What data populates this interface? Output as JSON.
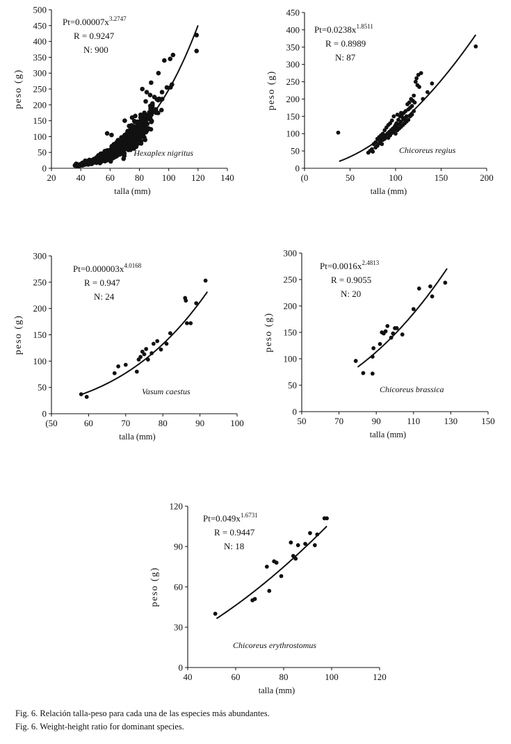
{
  "caption": {
    "line1": "Fig. 6. Relación talla-peso para cada una de las especies más abundantes.",
    "line2": "Fig. 6. Weight-height ratio for dominant species."
  },
  "chart_data": [
    {
      "type": "scatter",
      "species": "Hexaplex nigritus",
      "equation": {
        "prefix": "Pt=0.00007x",
        "exponent": "3.2747"
      },
      "r_label": "R = 0.9247",
      "n_label": "N: 900",
      "xlabel": "talla (mm)",
      "ylabel": "peso (g)",
      "xlim": [
        20,
        140
      ],
      "ylim": [
        0,
        500
      ],
      "xticks": [
        20,
        40,
        60,
        80,
        100,
        120,
        140
      ],
      "yticks": [
        0,
        50,
        100,
        150,
        200,
        250,
        300,
        350,
        400,
        450,
        500
      ],
      "fit": {
        "a": 7e-05,
        "b": 3.2747,
        "x_range": [
          36,
          120
        ]
      },
      "cloud": {
        "n": 900,
        "x_range": [
          36,
          120
        ],
        "spread": 0.32
      },
      "points": [
        [
          38,
          12
        ],
        [
          45,
          20
        ],
        [
          52,
          35
        ],
        [
          58,
          110
        ],
        [
          61,
          105
        ],
        [
          70,
          150
        ],
        [
          75,
          160
        ],
        [
          82,
          250
        ],
        [
          85,
          240
        ],
        [
          88,
          270
        ],
        [
          93,
          300
        ],
        [
          97,
          340
        ],
        [
          101,
          345
        ],
        [
          119,
          420
        ],
        [
          119,
          370
        ]
      ]
    },
    {
      "type": "scatter",
      "species": "Chicoreus regius",
      "equation": {
        "prefix": "Pt=0.0238x",
        "exponent": "1.8511"
      },
      "r_label": "R = 0.8989",
      "n_label": "N: 87",
      "xlabel": "talla (mm)",
      "ylabel": "peso (g)",
      "xlim": [
        0,
        200
      ],
      "ylim": [
        0,
        450
      ],
      "xticks": [
        0,
        50,
        100,
        150,
        200
      ],
      "xtick_labels": [
        "(0",
        "50",
        "100",
        "150",
        "200"
      ],
      "yticks": [
        0,
        50,
        100,
        150,
        200,
        250,
        300,
        350,
        400,
        450
      ],
      "fit": {
        "a": 0.0238,
        "b": 1.8511,
        "x_range": [
          38,
          188
        ]
      },
      "points": [
        [
          37,
          103
        ],
        [
          70,
          45
        ],
        [
          72,
          50
        ],
        [
          74,
          55
        ],
        [
          75,
          48
        ],
        [
          78,
          60
        ],
        [
          80,
          65
        ],
        [
          82,
          72
        ],
        [
          83,
          78
        ],
        [
          84,
          80
        ],
        [
          85,
          70
        ],
        [
          86,
          82
        ],
        [
          87,
          90
        ],
        [
          88,
          85
        ],
        [
          89,
          95
        ],
        [
          90,
          92
        ],
        [
          91,
          100
        ],
        [
          92,
          88
        ],
        [
          93,
          105
        ],
        [
          94,
          98
        ],
        [
          95,
          110
        ],
        [
          96,
          102
        ],
        [
          97,
          115
        ],
        [
          98,
          108
        ],
        [
          99,
          120
        ],
        [
          100,
          112
        ],
        [
          100,
          125
        ],
        [
          101,
          130
        ],
        [
          102,
          118
        ],
        [
          103,
          140
        ],
        [
          104,
          128
        ],
        [
          105,
          150
        ],
        [
          106,
          135
        ],
        [
          107,
          155
        ],
        [
          108,
          145
        ],
        [
          109,
          160
        ],
        [
          110,
          140
        ],
        [
          111,
          165
        ],
        [
          112,
          150
        ],
        [
          113,
          185
        ],
        [
          114,
          170
        ],
        [
          115,
          190
        ],
        [
          116,
          175
        ],
        [
          117,
          200
        ],
        [
          118,
          180
        ],
        [
          119,
          195
        ],
        [
          120,
          210
        ],
        [
          121,
          190
        ],
        [
          122,
          250
        ],
        [
          123,
          260
        ],
        [
          124,
          240
        ],
        [
          125,
          270
        ],
        [
          126,
          235
        ],
        [
          128,
          275
        ],
        [
          130,
          200
        ],
        [
          135,
          220
        ],
        [
          140,
          245
        ],
        [
          188,
          352
        ],
        [
          98,
          150
        ],
        [
          102,
          155
        ],
        [
          106,
          160
        ],
        [
          110,
          145
        ],
        [
          96,
          138
        ],
        [
          94,
          130
        ],
        [
          92,
          125
        ],
        [
          90,
          118
        ],
        [
          88,
          110
        ],
        [
          86,
          100
        ],
        [
          84,
          95
        ],
        [
          82,
          90
        ],
        [
          80,
          85
        ],
        [
          78,
          75
        ],
        [
          76,
          70
        ],
        [
          100,
          100
        ],
        [
          104,
          115
        ],
        [
          108,
          125
        ],
        [
          112,
          135
        ],
        [
          116,
          150
        ],
        [
          120,
          165
        ],
        [
          118,
          155
        ],
        [
          114,
          140
        ],
        [
          110,
          130
        ],
        [
          106,
          120
        ],
        [
          102,
          110
        ],
        [
          98,
          105
        ],
        [
          94,
          95
        ],
        [
          92,
          100
        ]
      ]
    },
    {
      "type": "scatter",
      "species": "Vasum caestus",
      "equation": {
        "prefix": "Pt=0.000003x",
        "exponent": "4.0168"
      },
      "r_label": "R = 0.947",
      "n_label": "N: 24",
      "xlabel": "talla (mm)",
      "ylabel": "peso (g)",
      "xlim": [
        50,
        100
      ],
      "ylim": [
        0,
        300
      ],
      "xticks": [
        50,
        60,
        70,
        80,
        90,
        100
      ],
      "xtick_labels": [
        "(50",
        "60",
        "70",
        "80",
        "90",
        "100"
      ],
      "yticks": [
        0,
        50,
        100,
        150,
        200,
        250,
        300
      ],
      "fit": {
        "a": 3e-06,
        "b": 4.0168,
        "x_range": [
          58,
          92
        ]
      },
      "points": [
        [
          58,
          37
        ],
        [
          59.5,
          32
        ],
        [
          67,
          77
        ],
        [
          68,
          90
        ],
        [
          70,
          93
        ],
        [
          73,
          80
        ],
        [
          73.5,
          103
        ],
        [
          74.5,
          118
        ],
        [
          75.5,
          123
        ],
        [
          76,
          103
        ],
        [
          77,
          115
        ],
        [
          77.5,
          133
        ],
        [
          78.5,
          138
        ],
        [
          79.5,
          122
        ],
        [
          81,
          133
        ],
        [
          82,
          153
        ],
        [
          86,
          220
        ],
        [
          86.2,
          215
        ],
        [
          86.5,
          172
        ],
        [
          87.5,
          172
        ],
        [
          89,
          210
        ],
        [
          91.5,
          253
        ],
        [
          75,
          113
        ],
        [
          74,
          108
        ]
      ]
    },
    {
      "type": "scatter",
      "species": "Chicoreus brassica",
      "equation": {
        "prefix": "Pt=0.0016x",
        "exponent": "2.4813"
      },
      "r_label": "R = 0.9055",
      "n_label": "N: 20",
      "xlabel": "talla (mm)",
      "ylabel": "peso (g)",
      "xlim": [
        50,
        150
      ],
      "ylim": [
        0,
        300
      ],
      "xticks": [
        50,
        70,
        90,
        110,
        130,
        150
      ],
      "yticks": [
        0,
        50,
        100,
        150,
        200,
        250,
        300
      ],
      "fit": {
        "a": 0.0016,
        "b": 2.4813,
        "x_range": [
          80,
          128
        ]
      },
      "points": [
        [
          79,
          96
        ],
        [
          83,
          73
        ],
        [
          88,
          72
        ],
        [
          88,
          104
        ],
        [
          88.5,
          120
        ],
        [
          92,
          128
        ],
        [
          93,
          150
        ],
        [
          94,
          148
        ],
        [
          95,
          152
        ],
        [
          96,
          162
        ],
        [
          98,
          140
        ],
        [
          99,
          148
        ],
        [
          100,
          158
        ],
        [
          101,
          158
        ],
        [
          104,
          146
        ],
        [
          110,
          194
        ],
        [
          113,
          233
        ],
        [
          119,
          237
        ],
        [
          120,
          218
        ],
        [
          127,
          244
        ]
      ]
    },
    {
      "type": "scatter",
      "species": "Chicoreus erythrostomus",
      "equation": {
        "prefix": "Pt=0.049x",
        "exponent": "1.6731"
      },
      "r_label": "R = 0.9447",
      "n_label": "N: 18",
      "xlabel": "talla (mm)",
      "ylabel": "peso (g)",
      "xlim": [
        40,
        120
      ],
      "ylim": [
        0,
        120
      ],
      "xticks": [
        40,
        60,
        80,
        100,
        120
      ],
      "yticks": [
        0,
        30,
        60,
        90,
        120
      ],
      "fit": {
        "a": 0.049,
        "b": 1.6731,
        "x_range": [
          52,
          98
        ]
      },
      "points": [
        [
          51.5,
          40
        ],
        [
          67,
          50
        ],
        [
          68,
          51
        ],
        [
          73,
          75
        ],
        [
          74,
          57
        ],
        [
          76,
          79
        ],
        [
          77,
          78
        ],
        [
          79,
          68
        ],
        [
          83,
          93
        ],
        [
          84,
          83
        ],
        [
          85,
          81
        ],
        [
          86,
          91
        ],
        [
          89,
          92
        ],
        [
          91,
          100
        ],
        [
          93,
          91
        ],
        [
          94,
          99
        ],
        [
          97,
          111
        ],
        [
          98,
          111
        ]
      ]
    }
  ]
}
